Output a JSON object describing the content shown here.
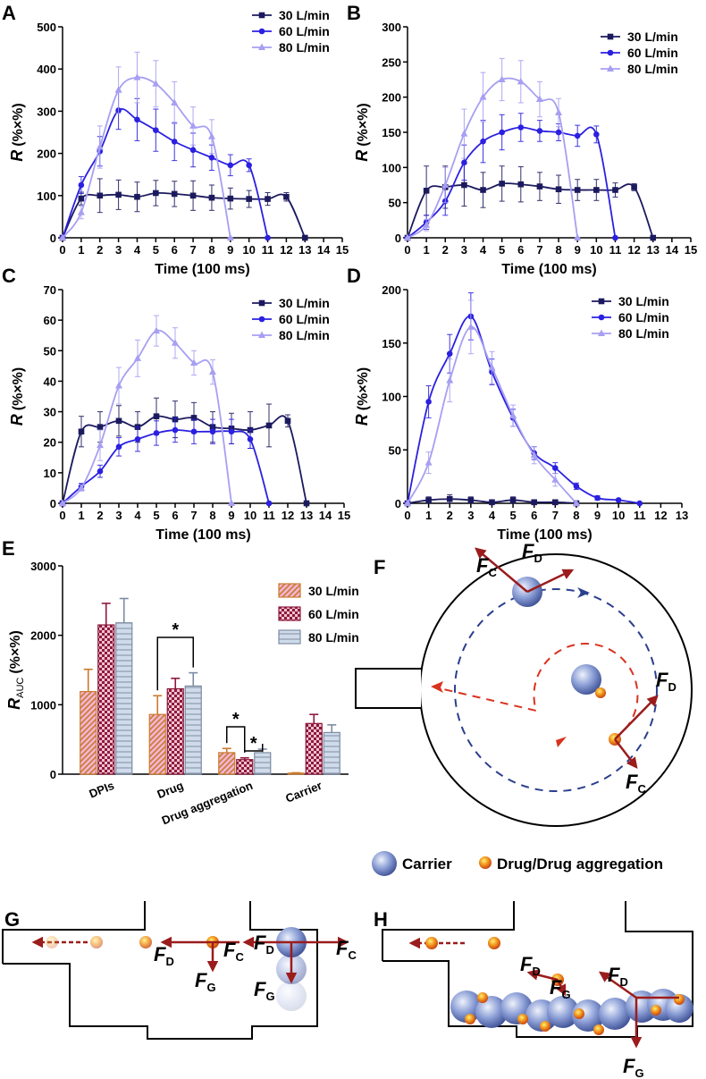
{
  "chart_data": [
    {
      "type": "line",
      "panel": "A",
      "xlabel": "Time (100 ms)",
      "ylabel": {
        "symbol": "R",
        "unit": "(%×%)"
      },
      "xlim": [
        0,
        15
      ],
      "xticks": [
        0,
        1,
        2,
        3,
        4,
        5,
        6,
        7,
        8,
        9,
        10,
        11,
        12,
        13,
        14,
        15
      ],
      "ylim": [
        0,
        500
      ],
      "yticks": [
        0,
        100,
        200,
        300,
        400,
        500
      ],
      "legend": "upper right",
      "series": [
        {
          "name": "30 L/min",
          "color": "#1c1a5e",
          "marker": "square",
          "x": [
            0,
            1,
            2,
            3,
            4,
            5,
            6,
            7,
            8,
            9,
            10,
            11,
            12,
            13
          ],
          "values": [
            0,
            93,
            100,
            102,
            97,
            106,
            104,
            100,
            95,
            93,
            92,
            92,
            97,
            0
          ],
          "errors": [
            0,
            15,
            40,
            35,
            35,
            30,
            30,
            35,
            30,
            25,
            20,
            15,
            10,
            0
          ]
        },
        {
          "name": "60 L/min",
          "color": "#2b20e0",
          "marker": "circle",
          "x": [
            0,
            1,
            2,
            3,
            4,
            5,
            6,
            7,
            8,
            9,
            10,
            11
          ],
          "values": [
            0,
            125,
            205,
            302,
            280,
            255,
            228,
            208,
            190,
            172,
            172,
            0
          ],
          "errors": [
            0,
            20,
            35,
            45,
            50,
            50,
            45,
            40,
            30,
            25,
            15,
            0
          ]
        },
        {
          "name": "80 L/min",
          "color": "#a79ff2",
          "marker": "triangle",
          "x": [
            0,
            1,
            2,
            3,
            4,
            5,
            6,
            7,
            8,
            9
          ],
          "values": [
            0,
            60,
            215,
            350,
            380,
            365,
            320,
            265,
            240,
            0
          ],
          "errors": [
            0,
            15,
            50,
            55,
            60,
            55,
            50,
            45,
            40,
            0
          ]
        }
      ]
    },
    {
      "type": "line",
      "panel": "B",
      "xlabel": "Time (100 ms)",
      "ylabel": {
        "symbol": "R",
        "unit": "(%×%)"
      },
      "xlim": [
        0,
        15
      ],
      "xticks": [
        0,
        1,
        2,
        3,
        4,
        5,
        6,
        7,
        8,
        9,
        10,
        11,
        12,
        13,
        14,
        15
      ],
      "ylim": [
        0,
        300
      ],
      "yticks": [
        0,
        50,
        100,
        150,
        200,
        250,
        300
      ],
      "legend": "upper right",
      "series": [
        {
          "name": "30 L/min",
          "color": "#1c1a5e",
          "marker": "square",
          "x": [
            0,
            1,
            2,
            3,
            4,
            5,
            6,
            7,
            8,
            9,
            10,
            11,
            12,
            13
          ],
          "values": [
            0,
            67,
            72,
            75,
            68,
            77,
            76,
            73,
            69,
            68,
            68,
            68,
            72,
            0
          ],
          "errors": [
            0,
            35,
            30,
            30,
            25,
            25,
            25,
            20,
            20,
            15,
            15,
            10,
            5,
            0
          ]
        },
        {
          "name": "60 L/min",
          "color": "#2b20e0",
          "marker": "circle",
          "x": [
            0,
            1,
            2,
            3,
            4,
            5,
            6,
            7,
            8,
            9,
            10,
            11
          ],
          "values": [
            0,
            22,
            52,
            107,
            137,
            150,
            157,
            152,
            150,
            145,
            147,
            0
          ],
          "errors": [
            0,
            10,
            20,
            25,
            30,
            25,
            20,
            15,
            12,
            15,
            12,
            0
          ]
        },
        {
          "name": "80 L/min",
          "color": "#a79ff2",
          "marker": "triangle",
          "x": [
            0,
            1,
            2,
            3,
            4,
            5,
            6,
            7,
            8,
            9
          ],
          "values": [
            0,
            18,
            75,
            148,
            200,
            225,
            222,
            197,
            178,
            0
          ],
          "errors": [
            0,
            8,
            25,
            35,
            35,
            30,
            30,
            25,
            20,
            0
          ]
        }
      ]
    },
    {
      "type": "line",
      "panel": "C",
      "xlabel": "Time (100 ms)",
      "ylabel": {
        "symbol": "R",
        "unit": "(%×%)"
      },
      "xlim": [
        0,
        15
      ],
      "xticks": [
        0,
        1,
        2,
        3,
        4,
        5,
        6,
        7,
        8,
        9,
        10,
        11,
        12,
        13,
        14,
        15
      ],
      "ylim": [
        0,
        70
      ],
      "yticks": [
        0,
        10,
        20,
        30,
        40,
        50,
        60,
        70
      ],
      "legend": "upper right",
      "series": [
        {
          "name": "30 L/min",
          "color": "#1c1a5e",
          "marker": "square",
          "x": [
            0,
            1,
            2,
            3,
            4,
            5,
            6,
            7,
            8,
            9,
            10,
            11,
            12,
            13
          ],
          "values": [
            0,
            23.5,
            25,
            27,
            25,
            28.5,
            27.5,
            28,
            25,
            24.5,
            24,
            25.5,
            27,
            0
          ],
          "errors": [
            0,
            5,
            5,
            5,
            5,
            6,
            6,
            5,
            5,
            5,
            6,
            7,
            2,
            0
          ]
        },
        {
          "name": "60 L/min",
          "color": "#2b20e0",
          "marker": "circle",
          "x": [
            0,
            1,
            2,
            3,
            4,
            5,
            6,
            7,
            8,
            9,
            10,
            11
          ],
          "values": [
            0,
            5.5,
            10.5,
            18.5,
            21,
            23,
            24,
            23.5,
            23.5,
            23.5,
            21,
            0
          ],
          "errors": [
            0,
            1,
            2,
            3,
            4,
            4,
            4,
            4,
            4,
            4,
            3,
            0
          ]
        },
        {
          "name": "80 L/min",
          "color": "#a79ff2",
          "marker": "triangle",
          "x": [
            0,
            1,
            2,
            3,
            4,
            5,
            6,
            7,
            8,
            9
          ],
          "values": [
            0,
            5,
            19,
            38.5,
            47.5,
            56.5,
            52.5,
            46,
            43,
            0
          ],
          "errors": [
            0,
            1,
            5,
            6,
            6,
            5,
            5,
            4,
            4,
            0
          ]
        }
      ]
    },
    {
      "type": "line",
      "panel": "D",
      "xlabel": "Time (100 ms)",
      "ylabel": {
        "symbol": "R",
        "unit": "(%×%)"
      },
      "xlim": [
        0,
        13
      ],
      "xticks": [
        0,
        1,
        2,
        3,
        4,
        5,
        6,
        7,
        8,
        9,
        10,
        11,
        12,
        13
      ],
      "ylim": [
        0,
        200
      ],
      "yticks": [
        0,
        50,
        100,
        150,
        200
      ],
      "legend": "upper right",
      "series": [
        {
          "name": "30 L/min",
          "color": "#1c1a5e",
          "marker": "square",
          "x": [
            0,
            1,
            2,
            3,
            4,
            5,
            6,
            7,
            8
          ],
          "values": [
            0,
            3,
            4,
            3,
            1,
            3,
            1,
            1,
            0
          ],
          "errors": [
            0,
            3,
            4,
            3,
            2,
            3,
            1,
            1,
            0
          ]
        },
        {
          "name": "60 L/min",
          "color": "#2b20e0",
          "marker": "circle",
          "x": [
            0,
            1,
            2,
            3,
            4,
            5,
            6,
            7,
            8,
            9,
            10,
            11
          ],
          "values": [
            0,
            95,
            140,
            175,
            123,
            80,
            47,
            33,
            16,
            5,
            3,
            0
          ],
          "errors": [
            0,
            15,
            18,
            22,
            12,
            8,
            6,
            5,
            3,
            2,
            1,
            0
          ]
        },
        {
          "name": "80 L/min",
          "color": "#a79ff2",
          "marker": "triangle",
          "x": [
            0,
            1,
            2,
            3,
            4,
            5,
            6,
            7,
            8
          ],
          "values": [
            0,
            38,
            115,
            165,
            127,
            82,
            45,
            22,
            0
          ],
          "errors": [
            0,
            10,
            20,
            25,
            15,
            10,
            8,
            6,
            0
          ]
        }
      ]
    },
    {
      "type": "bar",
      "panel": "E",
      "ylabel": {
        "symbol": "R",
        "subscript": "AUC",
        "unit": "(%×%)"
      },
      "categories": [
        "DPIs",
        "Drug",
        "Drug aggregation",
        "Carrier"
      ],
      "ylim": [
        0,
        3000
      ],
      "yticks": [
        0,
        1000,
        2000,
        3000
      ],
      "legend": "upper right",
      "series": [
        {
          "name": "30 L/min",
          "color": "#f4b4d4",
          "edgecolor": "#c97a2e",
          "hatch": "diagonal",
          "values": [
            1190,
            860,
            310,
            15
          ],
          "errors": [
            320,
            270,
            60,
            5
          ]
        },
        {
          "name": "60 L/min",
          "color": "#f2c1cf",
          "edgecolor": "#8c1a3c",
          "hatch": "checker",
          "values": [
            2150,
            1230,
            210,
            730
          ],
          "errors": [
            310,
            150,
            25,
            130
          ]
        },
        {
          "name": "80 L/min",
          "color": "#cfdbea",
          "edgecolor": "#7d8ca3",
          "hatch": "horizontal",
          "values": [
            2180,
            1270,
            310,
            600
          ],
          "errors": [
            350,
            190,
            50,
            110
          ]
        }
      ],
      "annotations": [
        "*",
        "*",
        "*"
      ]
    }
  ],
  "diagrams": [
    {
      "panel": "F",
      "forces": [
        [
          "F",
          "C"
        ],
        [
          "F",
          "D"
        ],
        [
          "F",
          "D"
        ],
        [
          "F",
          "C"
        ]
      ],
      "legend": [
        "Carrier",
        "Drug/Drug aggregation"
      ]
    },
    {
      "panel": "G",
      "forces": [
        [
          "F",
          "D"
        ],
        [
          "F",
          "C"
        ],
        [
          "F",
          "G"
        ],
        [
          "F",
          "D"
        ],
        [
          "F",
          "G"
        ],
        [
          "F",
          "C"
        ]
      ]
    },
    {
      "panel": "H",
      "forces": [
        [
          "F",
          "D"
        ],
        [
          "F",
          "G"
        ],
        [
          "F",
          "D"
        ],
        [
          "F",
          "G"
        ]
      ]
    }
  ]
}
